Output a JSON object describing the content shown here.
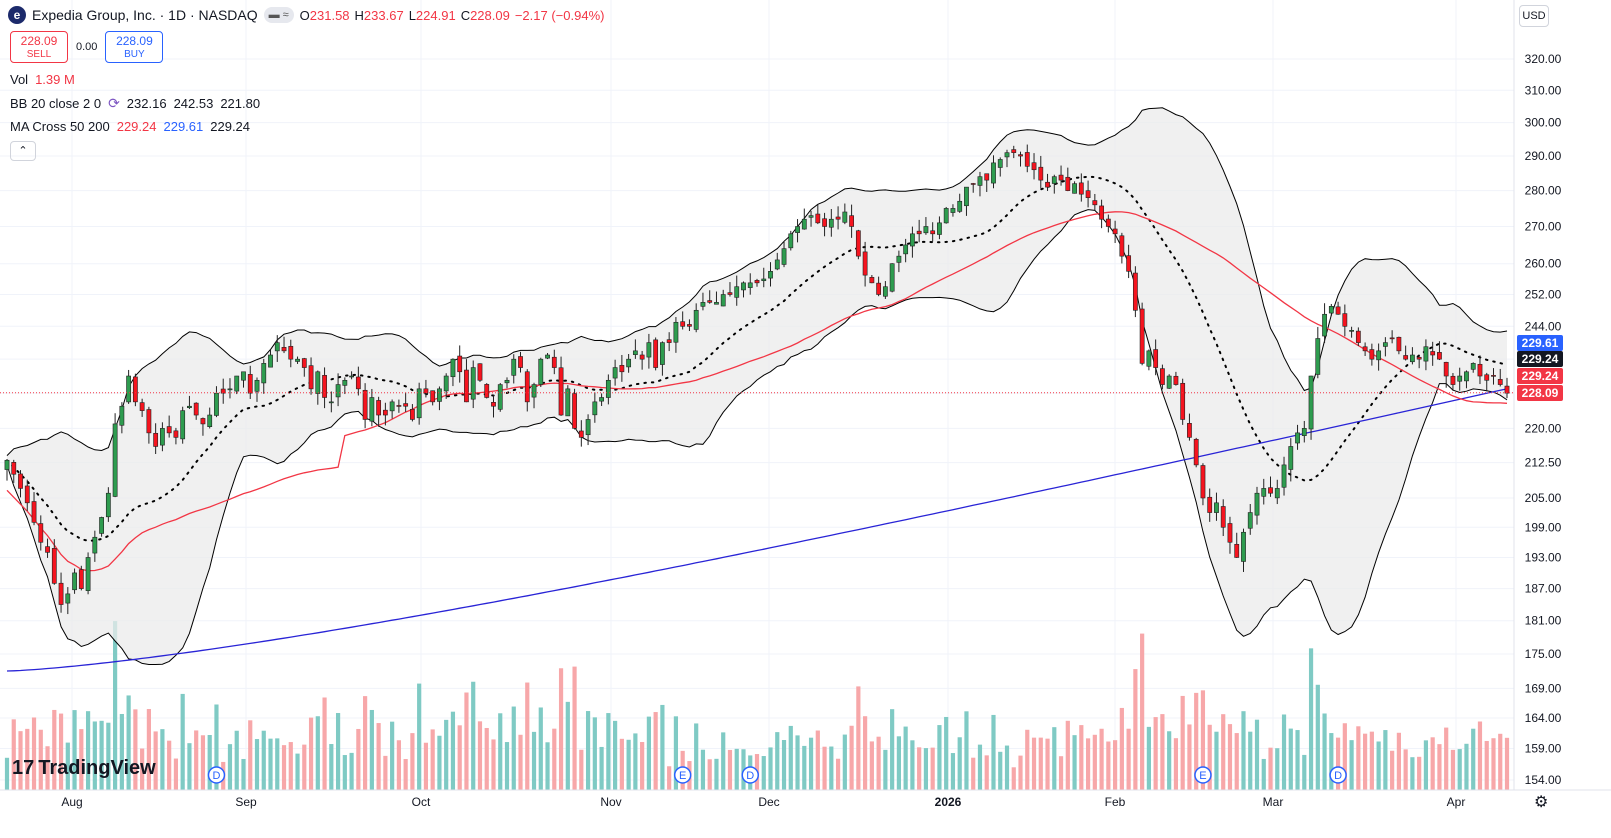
{
  "header": {
    "logo_letter": "e",
    "title": "Expedia Group, Inc. · 1D · NASDAQ",
    "ohlc": [
      {
        "k": "O",
        "v": "231.58"
      },
      {
        "k": "H",
        "v": "233.67"
      },
      {
        "k": "L",
        "v": "224.91"
      },
      {
        "k": "C",
        "v": "228.09"
      },
      {
        "k": "",
        "v": "−2.17 (−0.94%)"
      }
    ]
  },
  "trade": {
    "sell_price": "228.09",
    "sell_label": "SELL",
    "spread": "0.00",
    "buy_price": "228.09",
    "buy_label": "BUY"
  },
  "indicators": {
    "vol_label": "Vol",
    "vol_value": "1.39 M",
    "bb_label": "BB 20 close 2 0",
    "bb_values": [
      "232.16",
      "242.53",
      "221.80"
    ],
    "ma_label": "MA Cross 50 200",
    "ma_values": [
      "229.24",
      "229.61",
      "229.24"
    ]
  },
  "currency": "USD",
  "brand": "TradingView",
  "colors": {
    "up": "#2e9c4f",
    "down": "#f5141f",
    "ma50": "#f23645",
    "ma200": "#2924d6",
    "bb": "#000000",
    "vol_up": "#7fcac4",
    "vol_down": "#f7a7a9",
    "last": "#f23645",
    "blue_tag": "#2962ff"
  },
  "chart_data": {
    "type": "candlestick",
    "title": "Expedia Group, Inc. · 1D · NASDAQ",
    "y_scale": "log",
    "yaxis_ticks": [
      "320.00",
      "310.00",
      "300.00",
      "290.00",
      "280.00",
      "270.00",
      "260.00",
      "252.00",
      "244.00",
      "236.00",
      "228.00",
      "220.00",
      "212.50",
      "205.00",
      "199.00",
      "193.00",
      "187.00",
      "181.00",
      "175.00",
      "169.00",
      "164.00",
      "159.00",
      "154.00"
    ],
    "xaxis_labels": [
      "Aug",
      "Sep",
      "Oct",
      "Nov",
      "Dec",
      "2026",
      "Feb",
      "Mar",
      "Apr"
    ],
    "price_tags": [
      {
        "value": "229.61",
        "color": "#2962ff"
      },
      {
        "value": "229.24",
        "color": "#131722"
      },
      {
        "value": "229.24",
        "color": "#f23645"
      },
      {
        "value": "228.09",
        "color": "#f23645"
      }
    ],
    "events": [
      {
        "label": "D",
        "month": "Aug",
        "day": 26
      },
      {
        "label": "E",
        "month": "Nov",
        "day": 6
      },
      {
        "label": "D",
        "month": "Nov",
        "day": 20
      },
      {
        "label": "E",
        "month": "Feb",
        "day": 12
      },
      {
        "label": "D",
        "month": "Mar",
        "day": 5
      }
    ],
    "legend": "top-left",
    "closes": [
      213,
      210,
      207,
      204,
      200,
      196,
      194,
      188,
      184,
      186,
      190,
      187,
      193,
      197,
      201,
      206,
      221,
      225,
      232,
      226,
      224,
      219,
      216,
      220,
      219,
      218,
      224,
      225,
      223,
      221,
      223,
      228,
      228,
      229,
      232,
      233,
      228,
      231,
      235,
      237,
      240,
      238,
      236,
      236,
      234,
      229,
      233,
      227,
      226,
      230,
      231,
      232,
      229,
      222,
      227,
      223,
      223,
      226,
      225,
      225,
      222,
      229,
      228,
      226,
      229,
      232,
      236,
      233,
      226,
      234,
      231,
      227,
      225,
      230,
      231,
      236,
      234,
      226,
      230,
      236,
      237,
      234,
      223,
      229,
      220,
      218,
      222,
      226,
      227,
      231,
      234,
      233,
      236,
      238,
      236,
      240,
      234,
      240,
      240,
      245,
      244,
      244,
      248,
      250,
      250,
      250,
      252,
      252,
      254,
      255,
      255,
      255,
      256,
      258,
      261,
      264,
      268,
      270,
      272,
      273,
      271,
      270,
      272,
      272,
      274,
      270,
      262,
      257,
      255,
      252,
      254,
      260,
      262,
      265,
      268,
      268,
      270,
      268,
      271,
      275,
      275,
      277,
      281,
      282,
      284,
      283,
      288,
      289,
      291,
      291,
      290,
      287,
      286,
      283,
      281,
      284,
      283,
      280,
      282,
      279,
      278,
      276,
      272,
      270,
      268,
      262,
      258,
      248,
      235,
      238,
      234,
      230,
      232,
      230,
      222,
      218,
      212,
      205,
      202,
      204,
      199,
      196,
      193,
      198,
      202,
      206,
      207,
      206,
      207,
      212,
      216,
      219,
      220,
      232,
      241,
      247,
      249,
      247,
      244,
      243,
      240,
      238,
      236,
      238,
      240,
      241,
      238,
      236,
      237,
      236,
      239,
      237,
      236,
      232,
      230,
      232,
      233,
      235,
      232,
      231,
      232,
      230,
      228
    ],
    "ma50_note": "red line",
    "ma200_note": "blue line",
    "dotted_note": "20-day middle line"
  }
}
